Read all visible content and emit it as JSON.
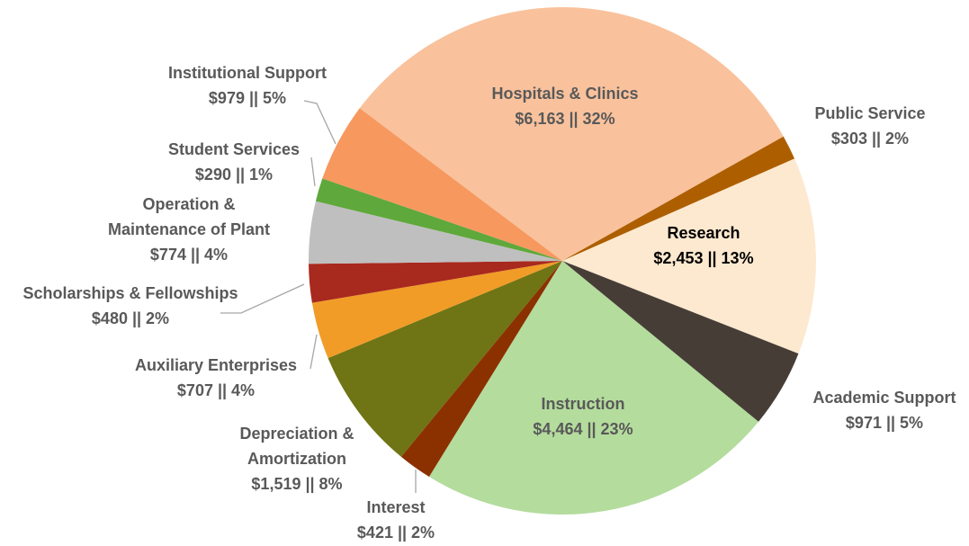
{
  "chart_data": {
    "type": "pie",
    "categories": [
      "Hospitals & Clinics",
      "Public Service",
      "Research",
      "Academic Support",
      "Instruction",
      "Interest",
      "Depreciation & Amortization",
      "Auxiliary Enterprises",
      "Scholarships & Fellowships",
      "Operation & Maintenance of Plant",
      "Student Services",
      "Institutional Support"
    ],
    "values": [
      6163,
      303,
      2453,
      971,
      4464,
      421,
      1519,
      707,
      480,
      774,
      290,
      979
    ],
    "value_labels": [
      "$6,163 || 32%",
      "$303 || 2%",
      "$2,453 || 13%",
      "$971 || 5%",
      "$4,464 || 23%",
      "$421 || 2%",
      "$1,519 || 8%",
      "$707 || 4%",
      "$480 || 2%",
      "$774 || 4%",
      "$290 || 1%",
      "$979 || 5%"
    ],
    "colors": [
      "#f9c29c",
      "#ad5f00",
      "#fde9cf",
      "#463e36",
      "#b4dc9d",
      "#8b3100",
      "#6f7414",
      "#f09c27",
      "#a8291e",
      "#bfbfbf",
      "#5fa83b",
      "#f7985f"
    ]
  }
}
